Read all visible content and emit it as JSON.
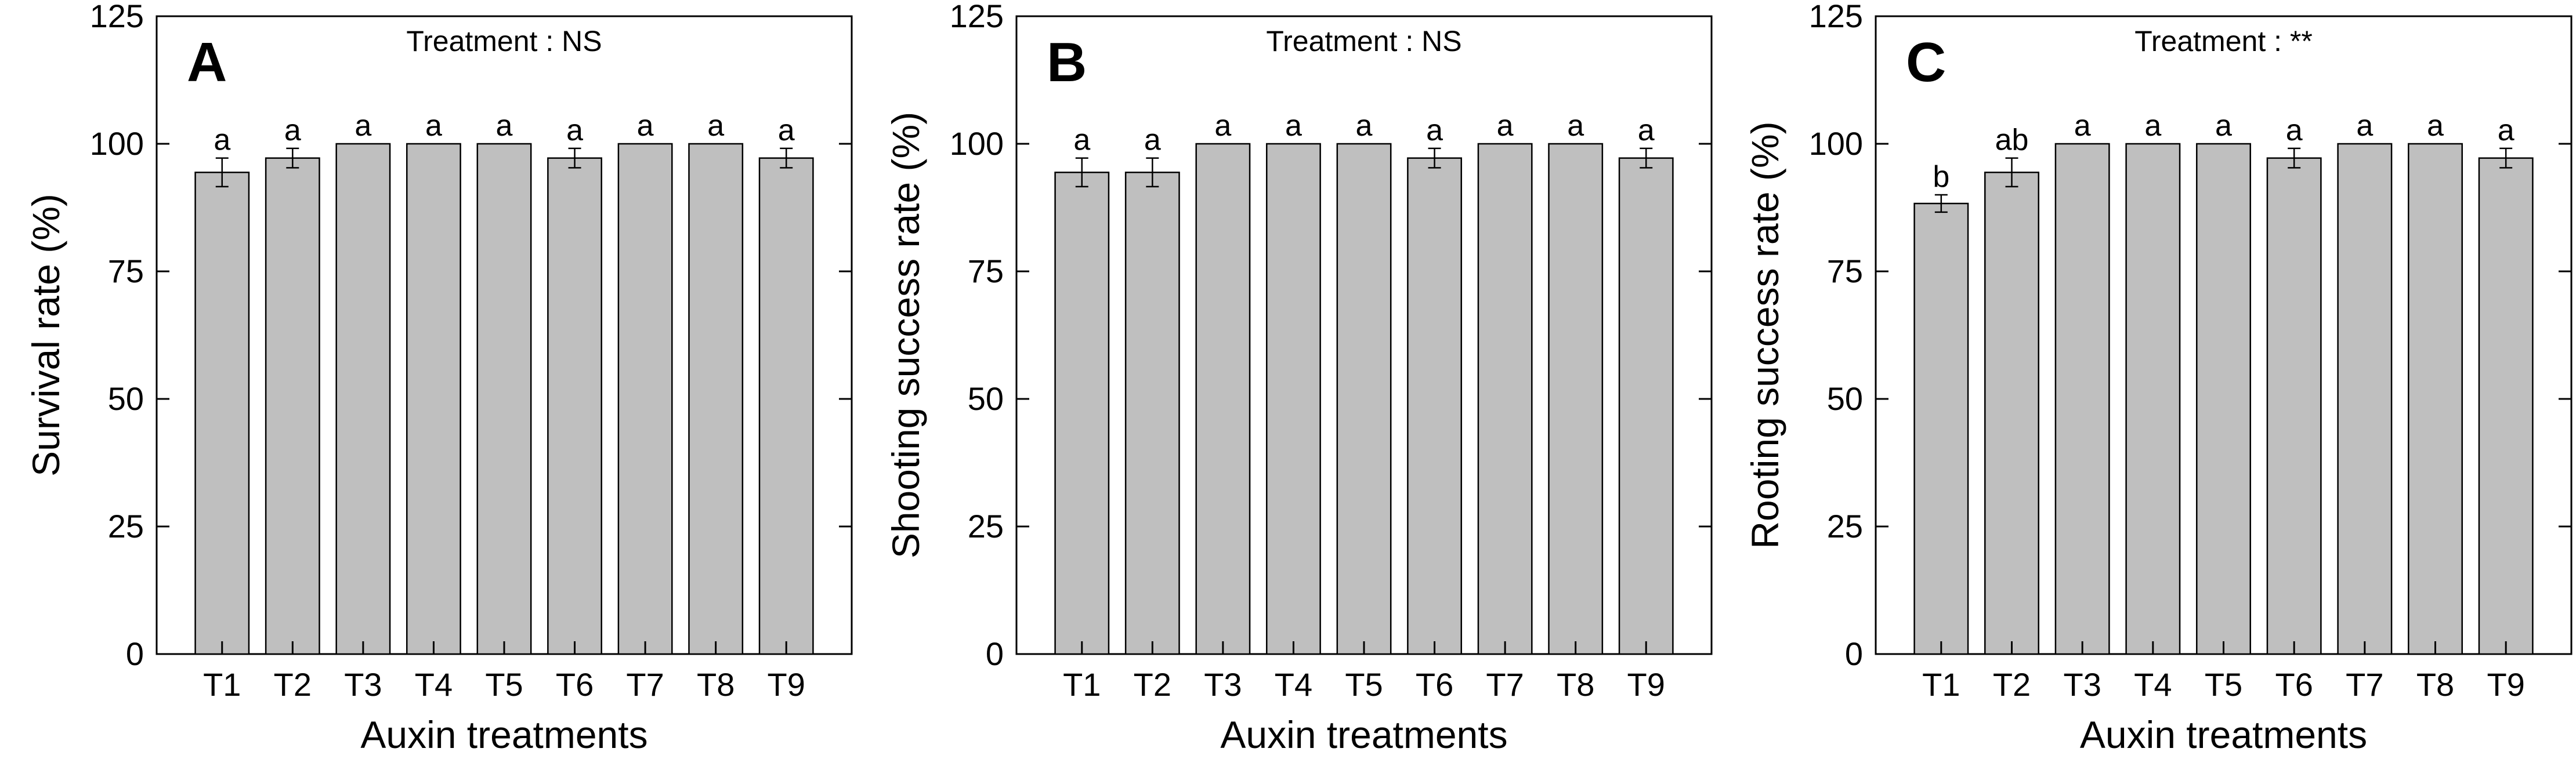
{
  "chart_data": [
    {
      "type": "bar",
      "panel": "A",
      "annotation": "Treatment : NS",
      "xlabel": "Auxin treatments",
      "ylabel": "Survival rate (%)",
      "ylim": [
        0,
        125
      ],
      "yticks": [
        0,
        25,
        50,
        75,
        100,
        125
      ],
      "categories": [
        "T1",
        "T2",
        "T3",
        "T4",
        "T5",
        "T6",
        "T7",
        "T8",
        "T9"
      ],
      "values": [
        94.4,
        97.2,
        100,
        100,
        100,
        97.2,
        100,
        100,
        97.2
      ],
      "errors": [
        2.8,
        1.9,
        0,
        0,
        0,
        1.9,
        0,
        0,
        1.9
      ],
      "letters": [
        "a",
        "a",
        "a",
        "a",
        "a",
        "a",
        "a",
        "a",
        "a"
      ],
      "bar_color": "#bfbfbf",
      "grid": false
    },
    {
      "type": "bar",
      "panel": "B",
      "annotation": "Treatment : NS",
      "xlabel": "Auxin treatments",
      "ylabel": "Shooting success rate (%)",
      "ylim": [
        0,
        125
      ],
      "yticks": [
        0,
        25,
        50,
        75,
        100,
        125
      ],
      "categories": [
        "T1",
        "T2",
        "T3",
        "T4",
        "T5",
        "T6",
        "T7",
        "T8",
        "T9"
      ],
      "values": [
        94.4,
        94.4,
        100,
        100,
        100,
        97.2,
        100,
        100,
        97.2
      ],
      "errors": [
        2.8,
        2.8,
        0,
        0,
        0,
        1.9,
        0,
        0,
        1.9
      ],
      "letters": [
        "a",
        "a",
        "a",
        "a",
        "a",
        "a",
        "a",
        "a",
        "a"
      ],
      "bar_color": "#bfbfbf",
      "grid": false
    },
    {
      "type": "bar",
      "panel": "C",
      "annotation": "Treatment : **",
      "xlabel": "Auxin treatments",
      "ylabel": "Rooting success rate (%)",
      "ylim": [
        0,
        125
      ],
      "yticks": [
        0,
        25,
        50,
        75,
        100,
        125
      ],
      "categories": [
        "T1",
        "T2",
        "T3",
        "T4",
        "T5",
        "T6",
        "T7",
        "T8",
        "T9"
      ],
      "values": [
        88.3,
        94.4,
        100,
        100,
        100,
        97.2,
        100,
        100,
        97.2
      ],
      "errors": [
        1.7,
        2.8,
        0,
        0,
        0,
        1.9,
        0,
        0,
        1.9
      ],
      "letters": [
        "b",
        "ab",
        "a",
        "a",
        "a",
        "a",
        "a",
        "a",
        "a"
      ],
      "bar_color": "#bfbfbf",
      "grid": false
    }
  ]
}
